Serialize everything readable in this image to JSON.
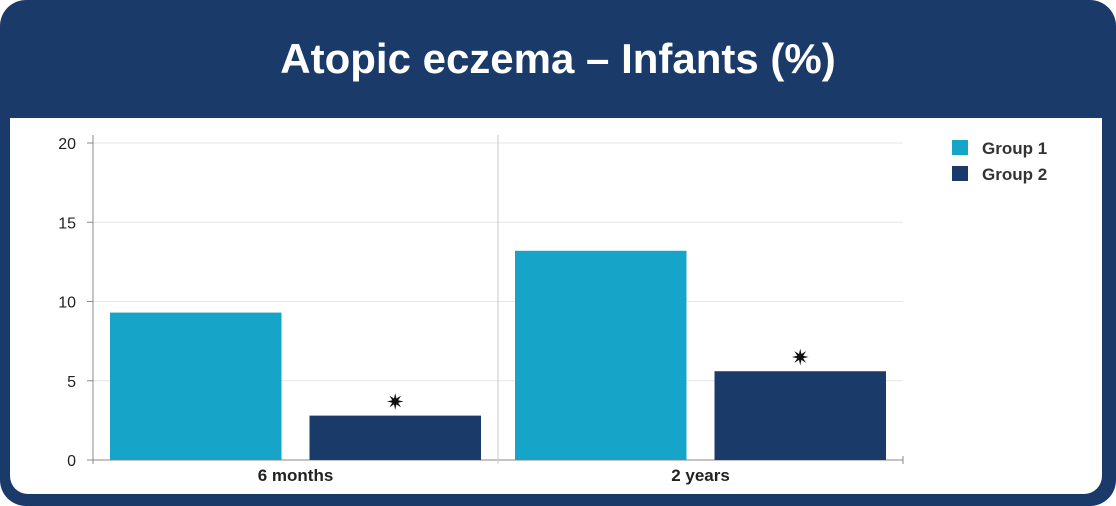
{
  "chart_data": {
    "type": "bar",
    "title": "Atopic eczema – Infants (%)",
    "categories": [
      "6 months",
      "2 years"
    ],
    "series": [
      {
        "name": "Group 1",
        "values": [
          9.3,
          13.2
        ],
        "color": "#16a4c8"
      },
      {
        "name": "Group 2",
        "values": [
          2.8,
          5.6
        ],
        "color": "#1a3a6a"
      }
    ],
    "ylim": [
      0,
      20
    ],
    "yticks": [
      0,
      5,
      10,
      15,
      20
    ],
    "annotations": [
      {
        "category": "6 months",
        "series": "Group 2",
        "text": "✷"
      },
      {
        "category": "2 years",
        "series": "Group 2",
        "text": "✷"
      }
    ],
    "grid": true,
    "legend": "top-right"
  },
  "colors": {
    "frame": "#1a3a6a",
    "grid": "#e6e6e6",
    "axis": "#888888"
  }
}
